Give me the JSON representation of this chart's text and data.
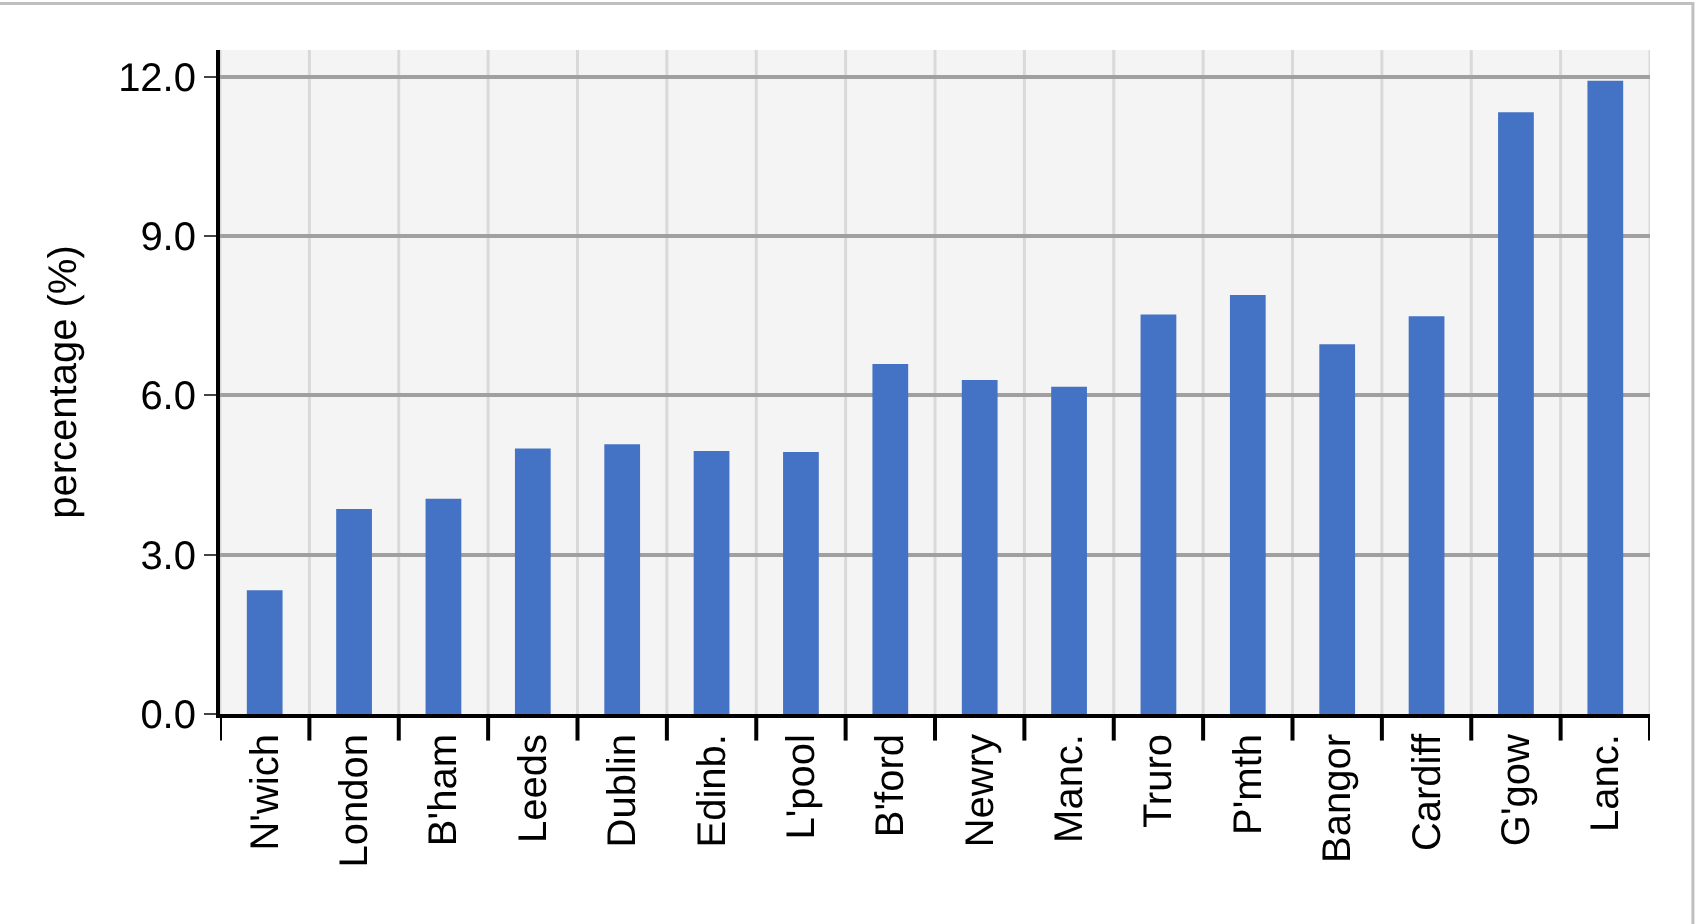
{
  "chart_data": {
    "type": "bar",
    "ylabel": "percentage (%)",
    "categories": [
      "N'wich",
      "London",
      "B'ham",
      "Leeds",
      "Dublin",
      "Edinb.",
      "L'pool",
      "B'ford",
      "Newry",
      "Manc.",
      "Truro",
      "P'mth",
      "Bangor",
      "Cardiff",
      "G'gow",
      "Lanc."
    ],
    "values": [
      2.33,
      3.86,
      4.05,
      5.0,
      5.08,
      4.95,
      4.93,
      6.59,
      6.29,
      6.16,
      7.52,
      7.89,
      6.96,
      7.49,
      11.33,
      11.92
    ],
    "color": "#4472c4",
    "ylim": [
      0,
      12.5
    ],
    "yticks": [
      {
        "value": 0,
        "label": "0.0"
      },
      {
        "value": 3,
        "label": "3.0"
      },
      {
        "value": 6,
        "label": "6.0"
      },
      {
        "value": 9,
        "label": "9.0"
      },
      {
        "value": 12,
        "label": "12.0"
      }
    ],
    "grid": true
  }
}
